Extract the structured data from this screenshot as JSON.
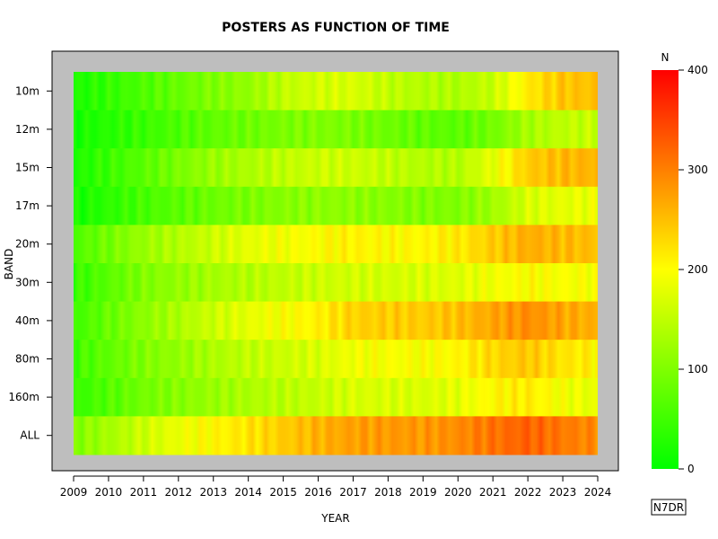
{
  "chart_data": {
    "type": "heatmap",
    "title": "POSTERS AS FUNCTION OF TIME",
    "xlabel": "YEAR",
    "ylabel": "BAND",
    "x_ticks": [
      "2009",
      "2010",
      "2011",
      "2012",
      "2013",
      "2014",
      "2015",
      "2016",
      "2017",
      "2018",
      "2019",
      "2020",
      "2021",
      "2022",
      "2023",
      "2024"
    ],
    "bands": [
      "10m",
      "12m",
      "15m",
      "17m",
      "20m",
      "30m",
      "40m",
      "80m",
      "160m",
      "ALL"
    ],
    "x_range": [
      2009.0,
      2024.0
    ],
    "colorbar": {
      "title": "N",
      "min": 0,
      "max": 400,
      "ticks": [
        "0",
        "100",
        "200",
        "300",
        "400"
      ]
    },
    "colors": {
      "low": "#00ff00",
      "mid": "#ffff00",
      "high": "#ff0000",
      "panel": "#bebebe"
    },
    "series": [
      {
        "band": "10m",
        "years": [
          2009,
          2010,
          2011,
          2012,
          2013,
          2014,
          2015,
          2016,
          2017,
          2018,
          2019,
          2020,
          2021,
          2022,
          2023,
          2024
        ],
        "values": [
          20,
          40,
          60,
          80,
          100,
          115,
          150,
          165,
          170,
          150,
          140,
          135,
          155,
          215,
          245,
          250
        ]
      },
      {
        "band": "12m",
        "years": [
          2009,
          2010,
          2011,
          2012,
          2013,
          2014,
          2015,
          2016,
          2017,
          2018,
          2019,
          2020,
          2021,
          2022,
          2023,
          2024
        ],
        "values": [
          15,
          30,
          45,
          60,
          75,
          85,
          95,
          100,
          95,
          85,
          75,
          70,
          90,
          130,
          150,
          155
        ]
      },
      {
        "band": "15m",
        "years": [
          2009,
          2010,
          2011,
          2012,
          2013,
          2014,
          2015,
          2016,
          2017,
          2018,
          2019,
          2020,
          2021,
          2022,
          2023,
          2024
        ],
        "values": [
          20,
          45,
          70,
          95,
          120,
          135,
          150,
          160,
          160,
          150,
          140,
          140,
          180,
          240,
          255,
          260
        ]
      },
      {
        "band": "17m",
        "years": [
          2009,
          2010,
          2011,
          2012,
          2013,
          2014,
          2015,
          2016,
          2017,
          2018,
          2019,
          2020,
          2021,
          2022,
          2023,
          2024
        ],
        "values": [
          15,
          35,
          55,
          70,
          85,
          95,
          105,
          110,
          110,
          105,
          100,
          100,
          125,
          170,
          180,
          185
        ]
      },
      {
        "band": "20m",
        "years": [
          2009,
          2010,
          2011,
          2012,
          2013,
          2014,
          2015,
          2016,
          2017,
          2018,
          2019,
          2020,
          2021,
          2022,
          2023,
          2024
        ],
        "values": [
          60,
          90,
          120,
          140,
          160,
          180,
          190,
          200,
          210,
          200,
          205,
          215,
          240,
          265,
          255,
          250
        ]
      },
      {
        "band": "30m",
        "years": [
          2009,
          2010,
          2011,
          2012,
          2013,
          2014,
          2015,
          2016,
          2017,
          2018,
          2019,
          2020,
          2021,
          2022,
          2023,
          2024
        ],
        "values": [
          40,
          70,
          100,
          115,
          130,
          140,
          150,
          160,
          165,
          165,
          170,
          175,
          190,
          200,
          195,
          195
        ]
      },
      {
        "band": "40m",
        "years": [
          2009,
          2010,
          2011,
          2012,
          2013,
          2014,
          2015,
          2016,
          2017,
          2018,
          2019,
          2020,
          2021,
          2022,
          2023,
          2024
        ],
        "values": [
          50,
          80,
          110,
          135,
          160,
          180,
          195,
          210,
          235,
          240,
          240,
          250,
          270,
          290,
          270,
          260
        ]
      },
      {
        "band": "80m",
        "years": [
          2009,
          2010,
          2011,
          2012,
          2013,
          2014,
          2015,
          2016,
          2017,
          2018,
          2019,
          2020,
          2021,
          2022,
          2023,
          2024
        ],
        "values": [
          50,
          75,
          100,
          115,
          135,
          150,
          160,
          170,
          190,
          195,
          195,
          205,
          230,
          245,
          220,
          210
        ]
      },
      {
        "band": "160m",
        "years": [
          2009,
          2010,
          2011,
          2012,
          2013,
          2014,
          2015,
          2016,
          2017,
          2018,
          2019,
          2020,
          2021,
          2022,
          2023,
          2024
        ],
        "values": [
          40,
          65,
          90,
          105,
          120,
          135,
          145,
          155,
          170,
          170,
          170,
          180,
          205,
          215,
          190,
          180
        ]
      },
      {
        "band": "ALL",
        "years": [
          2009,
          2010,
          2011,
          2012,
          2013,
          2014,
          2015,
          2016,
          2017,
          2018,
          2019,
          2020,
          2021,
          2022,
          2023,
          2024
        ],
        "values": [
          100,
          130,
          160,
          185,
          205,
          220,
          240,
          260,
          275,
          280,
          280,
          290,
          310,
          325,
          305,
          290
        ]
      }
    ]
  },
  "credit": "N7DR"
}
